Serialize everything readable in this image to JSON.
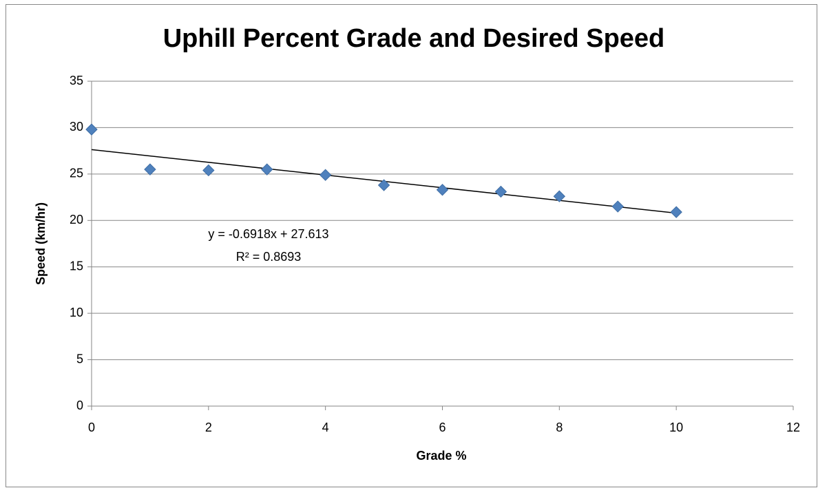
{
  "chart_data": {
    "type": "scatter",
    "title": "Uphill Percent Grade and Desired Speed",
    "x_label": "Grade %",
    "y_label": "Speed (km/hr)",
    "series": [
      {
        "name": "Speed",
        "color": "#4f81bd",
        "x": [
          0,
          1,
          2,
          3,
          4,
          5,
          6,
          7,
          8,
          9,
          10
        ],
        "values": [
          29.8,
          25.5,
          25.4,
          25.5,
          24.9,
          23.8,
          23.3,
          23.1,
          22.6,
          21.5,
          20.9
        ]
      }
    ],
    "trendline": {
      "equation": "y = -0.6918x + 27.613",
      "r_squared": "R² = 0.8693",
      "color": "#000000"
    },
    "xlim": [
      0,
      12
    ],
    "xticks": [
      0,
      2,
      4,
      6,
      8,
      10,
      12
    ],
    "ylim": [
      0,
      35
    ],
    "yticks": [
      0,
      5,
      10,
      15,
      20,
      25,
      30,
      35
    ],
    "grid": true
  }
}
